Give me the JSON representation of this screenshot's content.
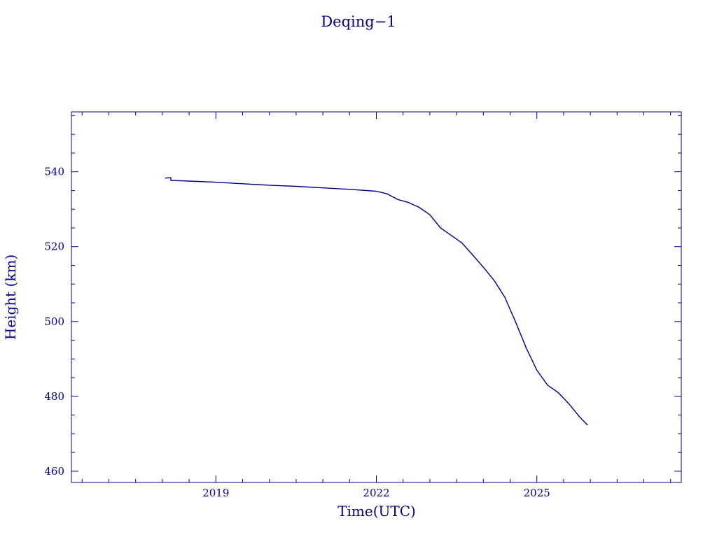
{
  "chart_data": {
    "type": "line",
    "title": "Deqing−1",
    "xlabel": "Time(UTC)",
    "ylabel": "Height (km)",
    "xlim": [
      2016.3,
      2027.7
    ],
    "ylim": [
      457,
      556
    ],
    "xticks": [
      2019,
      2022,
      2025
    ],
    "yticks": [
      460,
      480,
      500,
      520,
      540
    ],
    "color": "#00008b",
    "grid": false,
    "series": [
      {
        "x": [
          2018.05,
          2018.12,
          2018.16,
          2018.16,
          2018.5,
          2019.0,
          2019.5,
          2020.0,
          2020.5,
          2021.0,
          2021.5,
          2022.0,
          2022.2,
          2022.4,
          2022.6,
          2022.8,
          2023.0,
          2023.2,
          2023.4,
          2023.6,
          2023.8,
          2024.0,
          2024.2,
          2024.4,
          2024.6,
          2024.8,
          2025.0,
          2025.2,
          2025.4,
          2025.6,
          2025.8,
          2025.95
        ],
        "y": [
          538.3,
          538.4,
          538.4,
          537.7,
          537.5,
          537.2,
          536.8,
          536.4,
          536.1,
          535.7,
          535.3,
          534.8,
          534.1,
          532.6,
          531.8,
          530.5,
          528.5,
          525.0,
          523.0,
          521.0,
          517.8,
          514.5,
          511.0,
          506.5,
          500.0,
          493.0,
          487.0,
          483.0,
          481.0,
          478.0,
          474.5,
          472.3
        ]
      }
    ]
  }
}
